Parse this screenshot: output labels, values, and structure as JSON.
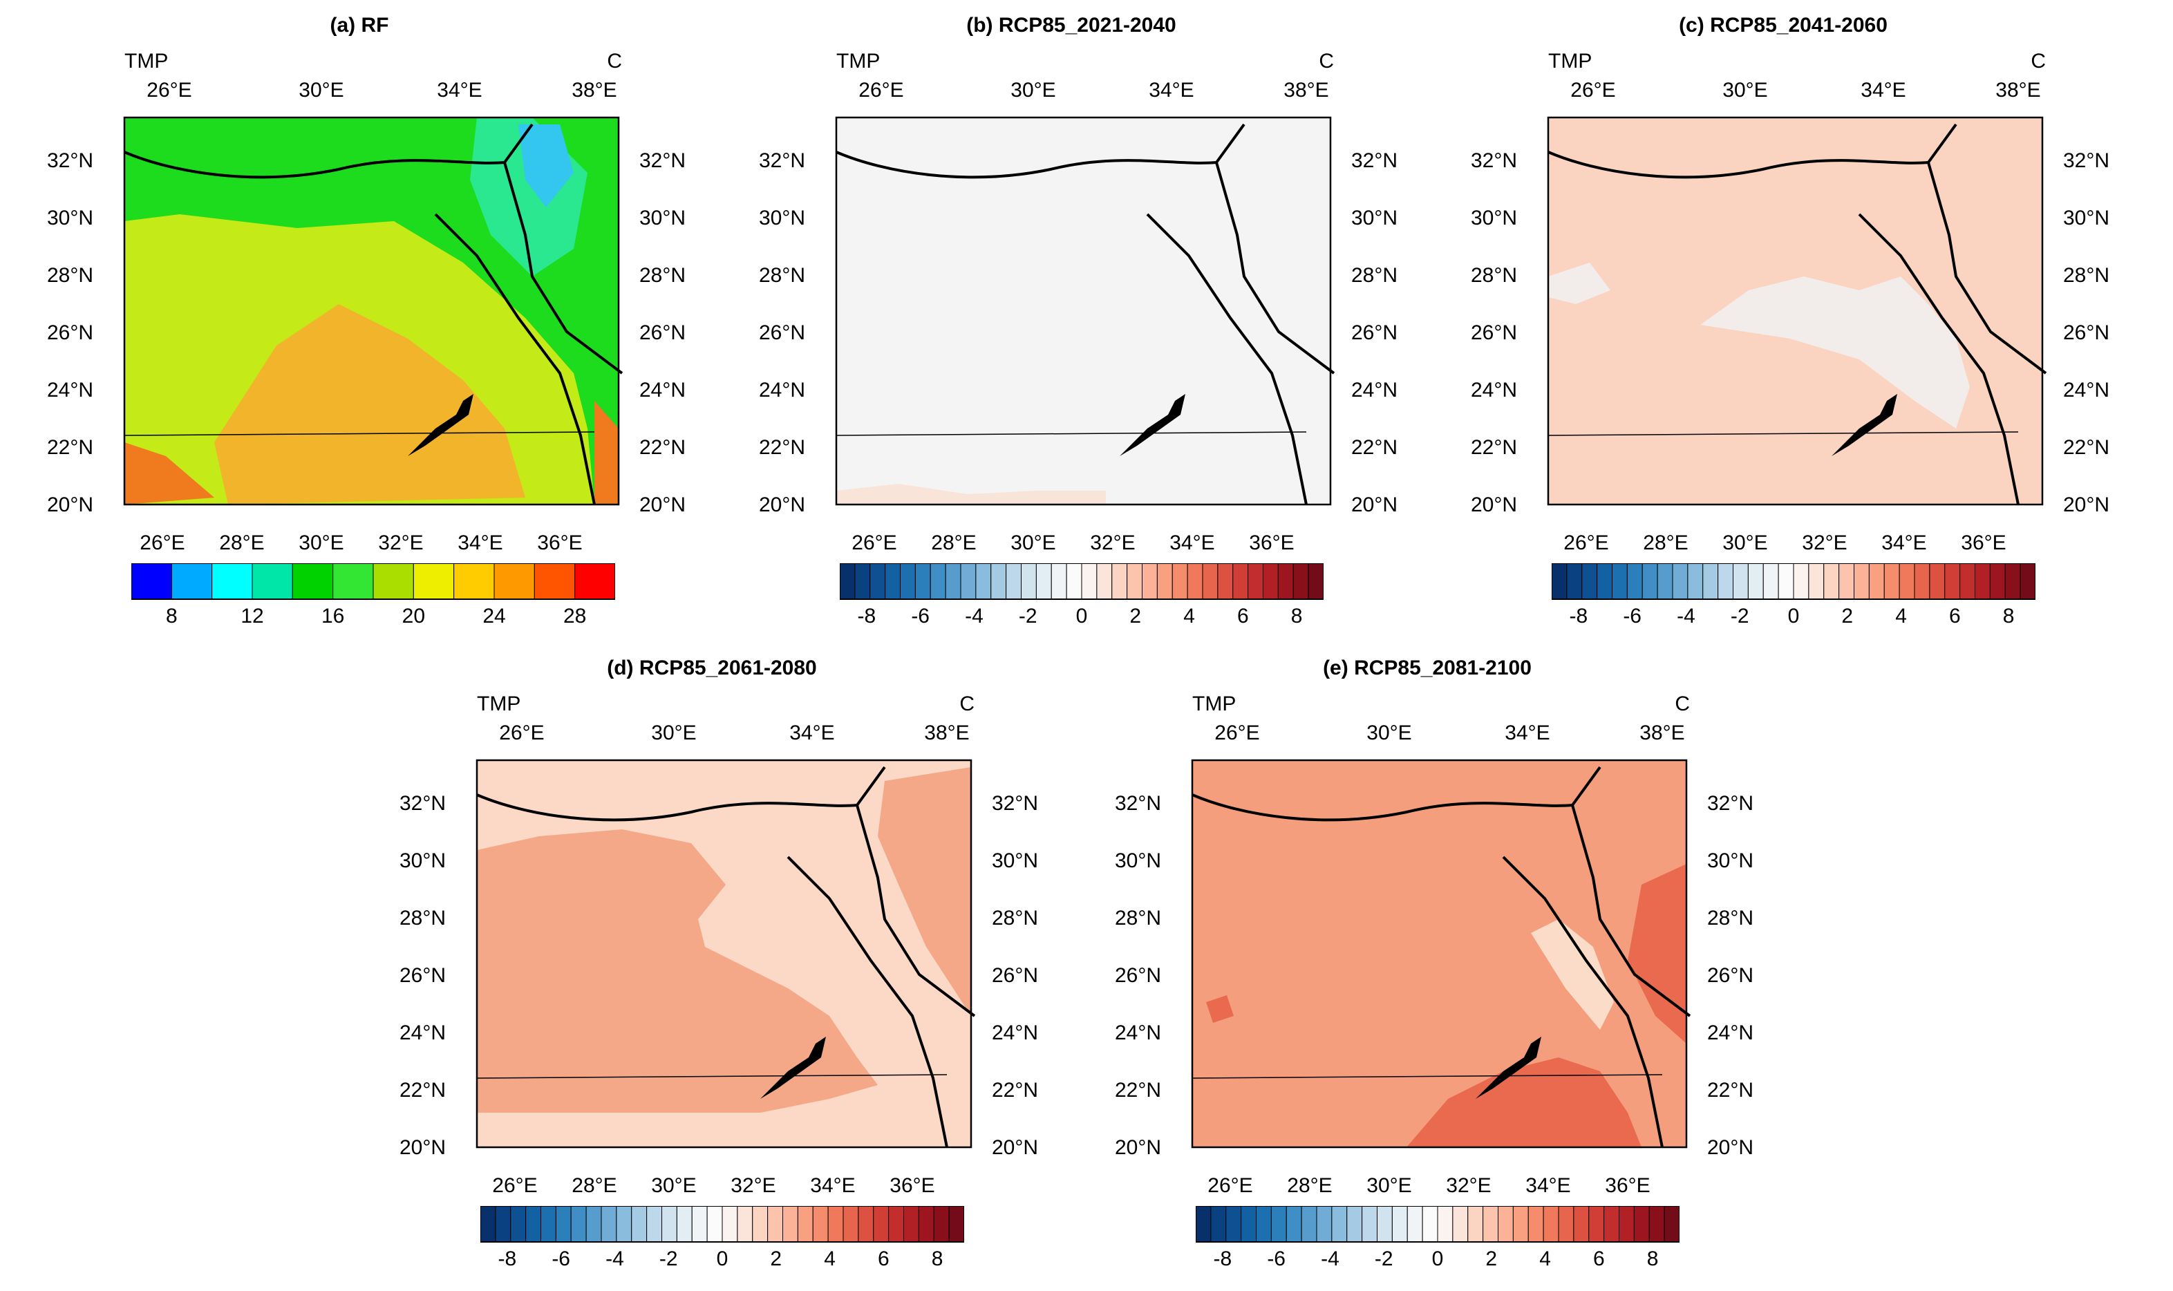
{
  "panels": [
    {
      "id": "a",
      "title": "(a) RF",
      "variable": "TMP",
      "units": "C",
      "colorbar": "rf"
    },
    {
      "id": "b",
      "title": "(b) RCP85_2021-2040",
      "variable": "TMP",
      "units": "C",
      "colorbar": "diff"
    },
    {
      "id": "c",
      "title": "(c) RCP85_2041-2060",
      "variable": "TMP",
      "units": "C",
      "colorbar": "diff"
    },
    {
      "id": "d",
      "title": "(d) RCP85_2061-2080",
      "variable": "TMP",
      "units": "C",
      "colorbar": "diff"
    },
    {
      "id": "e",
      "title": "(e) RCP85_2081-2100",
      "variable": "TMP",
      "units": "C",
      "colorbar": "diff"
    }
  ],
  "map": {
    "top_axis_labels": [
      "26°E",
      "30°E",
      "34°E",
      "38°E"
    ],
    "bottom_axis_labels": [
      "26°E",
      "28°E",
      "30°E",
      "32°E",
      "34°E",
      "36°E"
    ],
    "left_axis_labels": [
      "32°N",
      "30°N",
      "28°N",
      "26°N",
      "24°N",
      "22°N",
      "20°N"
    ],
    "right_axis_labels": [
      "32°N",
      "30°N",
      "28°N",
      "26°N",
      "24°N",
      "22°N",
      "20°N"
    ]
  },
  "colorbars": {
    "rf": {
      "colors": [
        "#0000ff",
        "#00aaff",
        "#00ffff",
        "#00e6a8",
        "#00d200",
        "#33e633",
        "#aadd00",
        "#eeee00",
        "#ffcc00",
        "#ff9900",
        "#ff5500",
        "#ff0000"
      ],
      "labels": [
        "8",
        "12",
        "16",
        "20",
        "24",
        "28"
      ]
    },
    "diff": {
      "colors": [
        "#08306b",
        "#0a4180",
        "#0d5192",
        "#1261a3",
        "#1d70b0",
        "#2b7fbb",
        "#3f8ec5",
        "#569dcd",
        "#70acd5",
        "#8abcdd",
        "#a5cbe4",
        "#bcd8ea",
        "#d0e3ef",
        "#e2edf4",
        "#f0f4f7",
        "#fbfbfb",
        "#fbf3ef",
        "#fbe4d9",
        "#fcd5c2",
        "#fcc4ac",
        "#fbb296",
        "#f9a080",
        "#f58d6c",
        "#ef795a",
        "#e6654c",
        "#dc5140",
        "#d03e36",
        "#c12e2d",
        "#b02025",
        "#9d151f",
        "#89101b",
        "#730b18"
      ],
      "labels": [
        "-8",
        "-6",
        "-4",
        "-2",
        "0",
        "2",
        "4",
        "6",
        "8"
      ]
    }
  },
  "colors": {
    "rf_base": "#1ddc1d",
    "rf_mid": "#c4ea17",
    "rf_warm": "#f1b42b",
    "rf_hot": "#f07a1e",
    "b_fill": "#f4f4f4",
    "c_fill": "#fad4c1",
    "c_light": "#f2ecea",
    "d_base": "#fcd8c7",
    "d_warm": "#f4a887",
    "e_base": "#f59e7d",
    "e_hot": "#ea6a50",
    "e_light": "#fbdcc8"
  }
}
